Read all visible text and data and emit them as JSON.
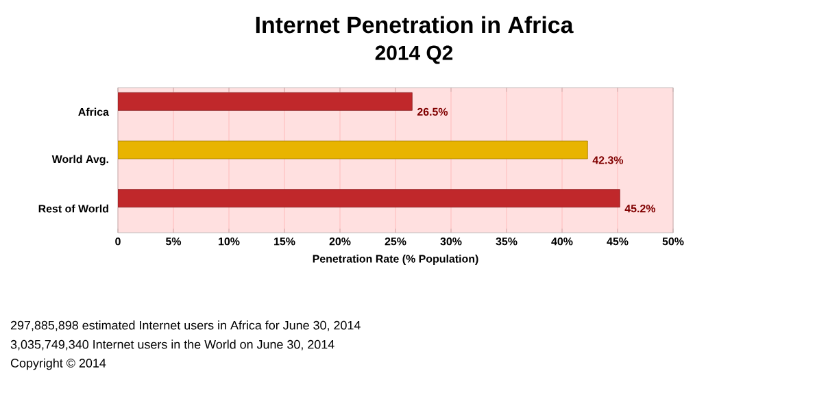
{
  "chart_data": {
    "type": "bar",
    "orientation": "horizontal",
    "title": "Internet Penetration in Africa",
    "subtitle": "2014 Q2",
    "categories": [
      "Africa",
      "World Avg.",
      "Rest of World"
    ],
    "values": [
      26.5,
      42.3,
      45.2
    ],
    "colors": [
      "#c0282b",
      "#e8b400",
      "#c0282b"
    ],
    "value_labels": [
      "26.5%",
      "42.3%",
      "45.2%"
    ],
    "xlabel": "Penetration Rate (% Population)",
    "xlim": [
      0,
      50
    ],
    "xticks": [
      0,
      {
        "value": 5,
        "label": "5%"
      },
      {
        "value": 10,
        "label": "10%"
      },
      {
        "value": 15,
        "label": "15%"
      },
      {
        "value": 20,
        "label": "20%"
      },
      {
        "value": 25,
        "label": "25%"
      },
      {
        "value": 30,
        "label": "30%"
      },
      {
        "value": 35,
        "label": "35%"
      },
      {
        "value": 40,
        "label": "40%"
      },
      {
        "value": 45,
        "label": "45%"
      },
      {
        "value": 50,
        "label": "50%"
      }
    ],
    "grid": "x",
    "annotations": [
      "297,885,898 estimated Internet users in Africa for June 30,  2014",
      "3,035,749,340 Internet users in the World on June 30, 2014",
      "Copyright © 2014"
    ]
  }
}
